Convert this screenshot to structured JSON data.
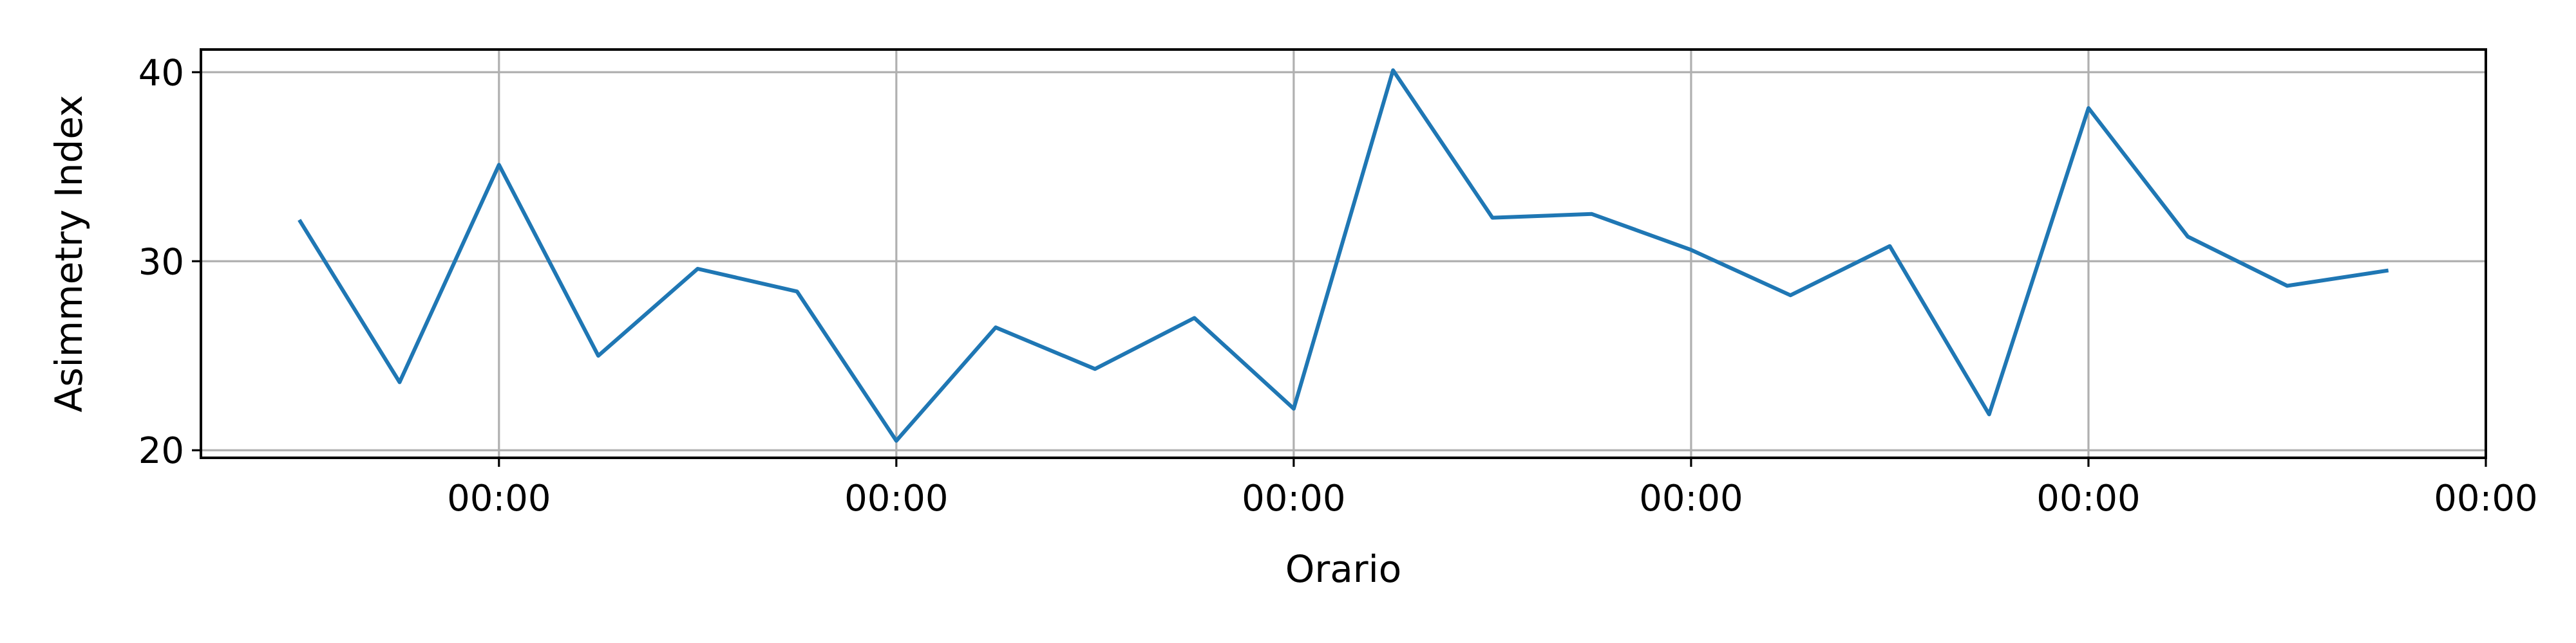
{
  "chart_data": {
    "type": "line",
    "title": "",
    "xlabel": "Orario",
    "ylabel": "Asimmetry Index",
    "x_tick_labels": [
      "00:00",
      "00:00",
      "00:00",
      "00:00",
      "00:00",
      "00:00"
    ],
    "y_ticks": [
      20,
      30,
      40
    ],
    "xlim": [
      -3,
      20
    ],
    "ylim": [
      19.6,
      41.2
    ],
    "grid": true,
    "legend": "none",
    "series": [
      {
        "color": "#1f77b4",
        "x": [
          -2,
          -1,
          0,
          1,
          2,
          3,
          4,
          5,
          6,
          7,
          8,
          9,
          10,
          11,
          12,
          13,
          14,
          15,
          16,
          17,
          18,
          19
        ],
        "y": [
          32.1,
          23.6,
          35.1,
          25.0,
          29.6,
          28.4,
          20.5,
          26.5,
          24.3,
          27.0,
          22.2,
          40.1,
          32.3,
          32.5,
          30.6,
          28.2,
          30.8,
          21.9,
          38.1,
          31.3,
          28.7,
          29.5
        ]
      }
    ],
    "x_tick_positions": [
      0,
      4,
      8,
      12,
      16,
      20
    ]
  }
}
